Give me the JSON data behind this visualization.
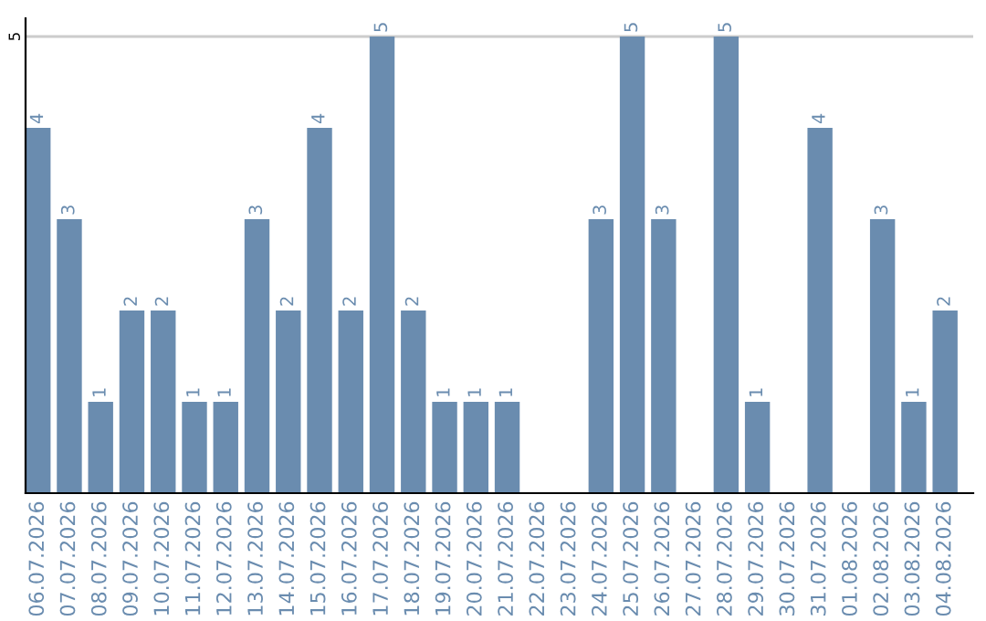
{
  "chart_data": {
    "type": "bar",
    "categories": [
      "06.07.2026",
      "07.07.2026",
      "08.07.2026",
      "09.07.2026",
      "10.07.2026",
      "11.07.2026",
      "12.07.2026",
      "13.07.2026",
      "14.07.2026",
      "15.07.2026",
      "16.07.2026",
      "17.07.2026",
      "18.07.2026",
      "19.07.2026",
      "20.07.2026",
      "21.07.2026",
      "22.07.2026",
      "23.07.2026",
      "24.07.2026",
      "25.07.2026",
      "26.07.2026",
      "27.07.2026",
      "28.07.2026",
      "29.07.2026",
      "30.07.2026",
      "31.07.2026",
      "01.08.2026",
      "02.08.2026",
      "03.08.2026",
      "04.08.2026"
    ],
    "values": [
      4,
      3,
      1,
      2,
      2,
      1,
      1,
      3,
      2,
      4,
      2,
      5,
      2,
      1,
      1,
      1,
      null,
      null,
      3,
      5,
      3,
      null,
      5,
      1,
      null,
      4,
      null,
      3,
      1,
      2
    ],
    "color": "#6a8caf",
    "ylim": [
      0,
      5.2
    ],
    "yticks": [
      5
    ],
    "grid": "y",
    "data_labels": true
  }
}
